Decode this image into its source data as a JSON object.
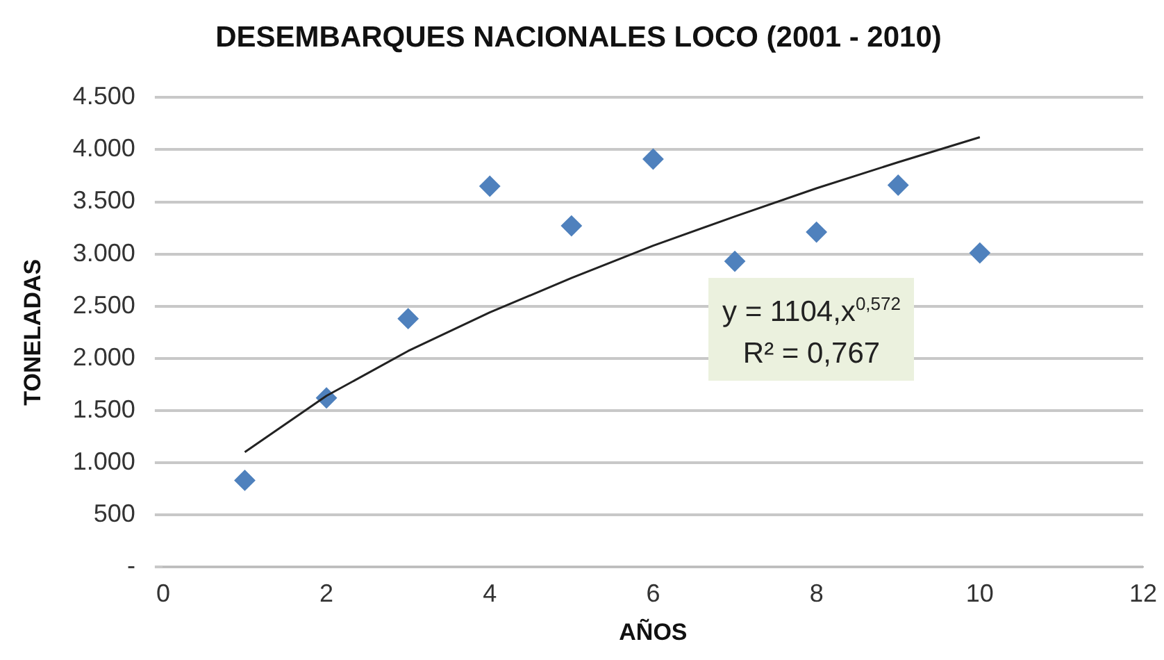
{
  "chart_data": {
    "type": "scatter",
    "title": "DESEMBARQUES NACIONALES LOCO (2001 - 2010)",
    "xlabel": "AÑOS",
    "ylabel": "TONELADAS",
    "x": [
      1,
      2,
      3,
      4,
      5,
      6,
      7,
      8,
      9,
      10
    ],
    "series": [
      {
        "color": "#4f81bd",
        "marker": "diamond",
        "values": [
          830,
          1620,
          2380,
          3650,
          3270,
          3910,
          2930,
          3210,
          3660,
          3010
        ]
      },
      {
        "type": "line",
        "color": "#222222",
        "marker": "none",
        "line_style": "solid",
        "x": [
          1,
          2,
          3,
          4,
          5,
          6,
          7,
          8,
          9,
          10
        ],
        "values": [
          1100,
          1640,
          2070,
          2440,
          2770,
          3080,
          3360,
          3630,
          3880,
          4120
        ]
      }
    ],
    "xlim": [
      0,
      12
    ],
    "xticks": [
      0,
      2,
      4,
      6,
      8,
      10,
      12
    ],
    "ylim": [
      0,
      4500
    ],
    "yticks": [
      {
        "value": 0,
        "label": "-"
      },
      500,
      {
        "value": 1000,
        "label": "1.000"
      },
      {
        "value": 1500,
        "label": "1.500"
      },
      {
        "value": 2000,
        "label": "2.000"
      },
      {
        "value": 2500,
        "label": "2.500"
      },
      {
        "value": 3000,
        "label": "3.000"
      },
      {
        "value": 3500,
        "label": "3.500"
      },
      {
        "value": 4000,
        "label": "4.000"
      },
      {
        "value": 4500,
        "label": "4.500"
      }
    ],
    "grid": "y",
    "legend": false,
    "annotations": [
      "y = 1104,x$^{0,572}$",
      "R² = 0,767"
    ]
  }
}
